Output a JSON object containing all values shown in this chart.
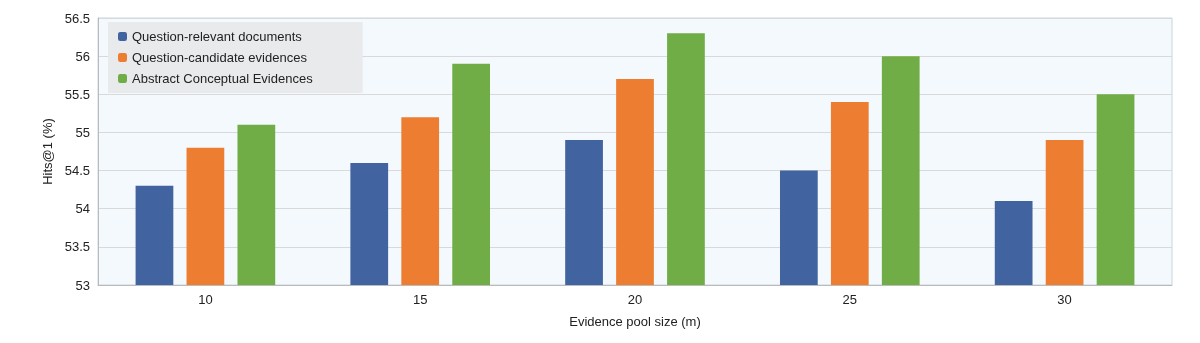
{
  "chart_data": {
    "type": "bar",
    "xlabel": "Evidence pool size (m)",
    "ylabel": "Hits@1 (%)",
    "categories": [
      "10",
      "15",
      "20",
      "25",
      "30"
    ],
    "series": [
      {
        "name": "Question-relevant documents",
        "color": "#41639f",
        "values": [
          54.3,
          54.6,
          54.9,
          54.5,
          54.1
        ]
      },
      {
        "name": "Question-candidate evidences",
        "color": "#ed7d31",
        "values": [
          54.8,
          55.2,
          55.7,
          55.4,
          54.9
        ]
      },
      {
        "name": "Abstract Conceptual Evidences",
        "color": "#70ad47",
        "values": [
          55.1,
          55.9,
          56.3,
          56.0,
          55.5
        ]
      }
    ],
    "ylim": [
      53,
      56.5
    ],
    "yticks": [
      53,
      53.5,
      54,
      54.5,
      55,
      55.5,
      56,
      56.5
    ],
    "grid": "y",
    "legend": "top left"
  }
}
